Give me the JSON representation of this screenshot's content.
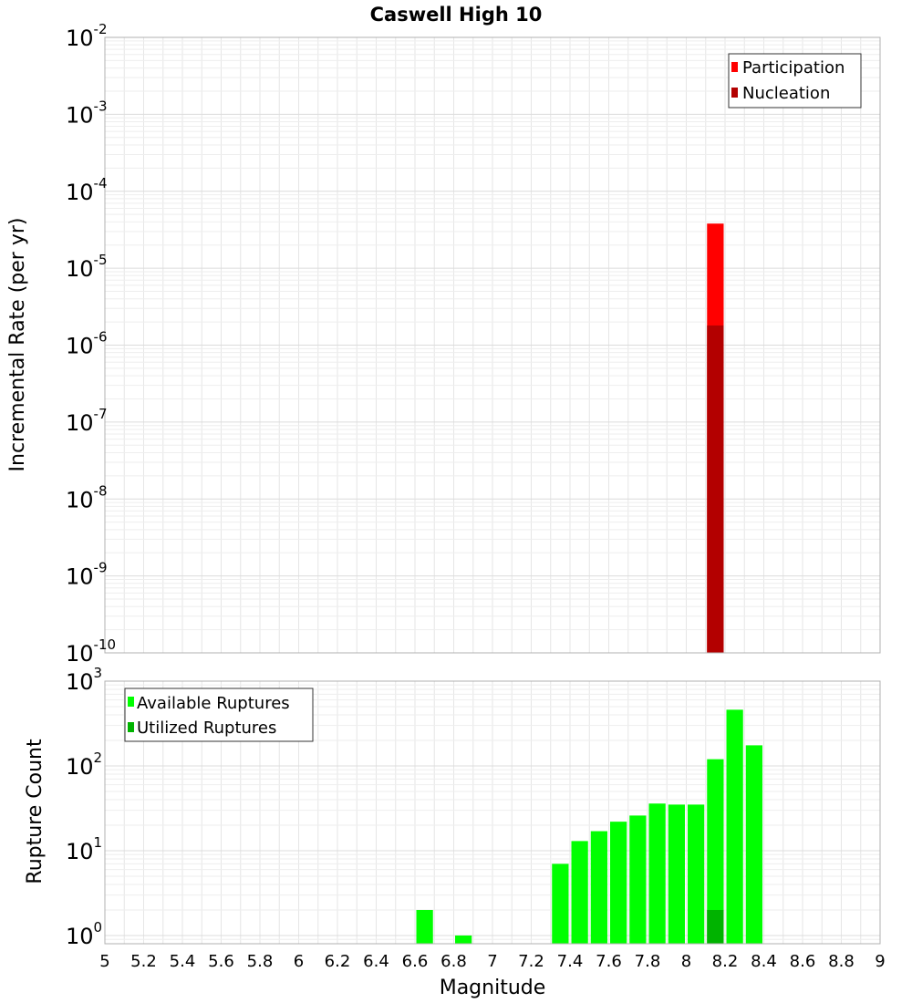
{
  "chart_data": [
    {
      "type": "bar",
      "title": "Caswell High 10",
      "xlabel": "",
      "ylabel": "Incremental Rate (per yr)",
      "yscale": "log",
      "ylim": [
        1e-10,
        0.01
      ],
      "xlim": [
        5,
        9
      ],
      "x_ticks": [
        5,
        5.2,
        5.4,
        5.6,
        5.8,
        6,
        6.2,
        6.4,
        6.6,
        6.8,
        7,
        7.2,
        7.4,
        7.6,
        7.8,
        8,
        8.2,
        8.4,
        8.6,
        8.8,
        9
      ],
      "y_tick_exponents": [
        -10,
        -9,
        -8,
        -7,
        -6,
        -5,
        -4,
        -3,
        -2
      ],
      "bar_width": 0.1,
      "legend_position": "top-right",
      "series": [
        {
          "name": "Participation",
          "color": "#ff0000",
          "x": [
            8.15
          ],
          "values": [
            3.8e-05
          ]
        },
        {
          "name": "Nucleation",
          "color": "#b30000",
          "x": [
            8.15
          ],
          "values": [
            1.8e-06
          ]
        }
      ]
    },
    {
      "type": "bar",
      "title": "",
      "xlabel": "Magnitude",
      "ylabel": "Rupture Count",
      "yscale": "log",
      "ylim": [
        0.8,
        1000
      ],
      "xlim": [
        5,
        9
      ],
      "x_ticks": [
        5,
        5.2,
        5.4,
        5.6,
        5.8,
        6,
        6.2,
        6.4,
        6.6,
        6.8,
        7,
        7.2,
        7.4,
        7.6,
        7.8,
        8,
        8.2,
        8.4,
        8.6,
        8.8,
        9
      ],
      "x_tick_labels": [
        "5",
        "5.2",
        "5.4",
        "5.6",
        "5.8",
        "6",
        "6.2",
        "6.4",
        "6.6",
        "6.8",
        "7",
        "7.2",
        "7.4",
        "7.6",
        "7.8",
        "8",
        "8.2",
        "8.4",
        "8.6",
        "8.8",
        "9"
      ],
      "y_tick_exponents": [
        0,
        1,
        2,
        3
      ],
      "bar_width": 0.1,
      "legend_position": "top-left",
      "series": [
        {
          "name": "Available Ruptures",
          "color": "#00ff00",
          "x": [
            6.65,
            6.85,
            7.35,
            7.45,
            7.55,
            7.65,
            7.75,
            7.85,
            7.95,
            8.05,
            8.15,
            8.25,
            8.35
          ],
          "values": [
            2,
            1,
            7,
            13,
            17,
            22,
            26,
            36,
            35,
            35,
            120,
            460,
            175
          ]
        },
        {
          "name": "Utilized Ruptures",
          "color": "#00b300",
          "x": [
            8.15
          ],
          "values": [
            2
          ]
        }
      ]
    }
  ]
}
